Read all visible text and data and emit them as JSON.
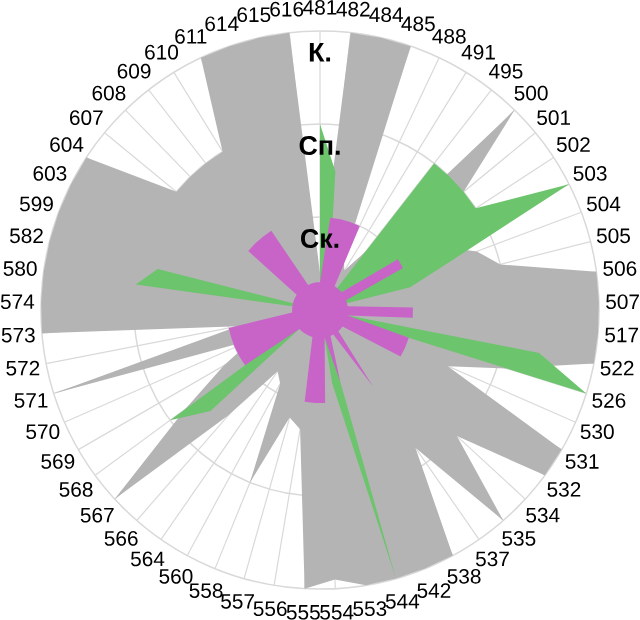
{
  "chart_data": {
    "type": "radar",
    "categories": [
      "481",
      "482",
      "484",
      "485",
      "488",
      "491",
      "495",
      "500",
      "501",
      "502",
      "503",
      "504",
      "505",
      "506",
      "507",
      "517",
      "522",
      "526",
      "530",
      "531",
      "532",
      "534",
      "535",
      "537",
      "538",
      "542",
      "544",
      "553",
      "554",
      "555",
      "556",
      "557",
      "558",
      "560",
      "564",
      "566",
      "567",
      "568",
      "569",
      "570",
      "571",
      "572",
      "573",
      "574",
      "580",
      "582",
      "599",
      "603",
      "604",
      "607",
      "608",
      "609",
      "610",
      "611",
      "614",
      "615",
      "616"
    ],
    "ylim": [
      0,
      3
    ],
    "yticks": [
      {
        "value": 1,
        "label": "Ск."
      },
      {
        "value": 2,
        "label": "Сп."
      },
      {
        "value": 3,
        "label": "К."
      }
    ],
    "grid": true,
    "series": [
      {
        "color": "#b4b4b4",
        "values": [
          0.4,
          3,
          3,
          3,
          0.6,
          0.5,
          0.8,
          3,
          2,
          1.2,
          1.5,
          1.8,
          2,
          3,
          3,
          3,
          3,
          2.1,
          1.5,
          3,
          3,
          2,
          3,
          1.8,
          3,
          3,
          3,
          3,
          2.9,
          3,
          1.3,
          1.2,
          2,
          0.9,
          0.8,
          1.5,
          3,
          1.8,
          1.2,
          0.8,
          3,
          0.9,
          3,
          3,
          3,
          3,
          3,
          3,
          3,
          2,
          2,
          2,
          2,
          3,
          3,
          3,
          3
        ]
      },
      {
        "color": "#6cc46c",
        "values": [
          2,
          1.5,
          0.5,
          0,
          0,
          0,
          2,
          2,
          2,
          2,
          3,
          1.5,
          1,
          0,
          0,
          0,
          2.4,
          3,
          0,
          0,
          0,
          0,
          0,
          0,
          0,
          0,
          3,
          0.8,
          0,
          0,
          0,
          0,
          0,
          0,
          0,
          0,
          1.6,
          2,
          0,
          0,
          0,
          0,
          0,
          0,
          2,
          1.8,
          0,
          0,
          0,
          0,
          0,
          0,
          0,
          0,
          0,
          0,
          0
        ]
      },
      {
        "color": "#c864c8",
        "values": [
          0.3,
          1,
          1,
          1,
          1,
          0.3,
          0.3,
          0.3,
          0.3,
          1,
          1,
          0.3,
          0.3,
          0.3,
          1,
          1,
          0.3,
          1,
          1,
          1,
          0.3,
          0.3,
          0.3,
          1,
          0.3,
          0.3,
          0.8,
          0.3,
          1,
          1,
          1,
          0.3,
          0.3,
          0.3,
          0.3,
          0.3,
          0.3,
          1,
          1,
          1,
          1,
          1,
          0.3,
          0.3,
          0.3,
          0.3,
          0.3,
          0.3,
          0.3,
          1,
          1,
          1,
          1,
          0.3,
          0.3,
          0.3,
          0.3
        ]
      }
    ]
  }
}
